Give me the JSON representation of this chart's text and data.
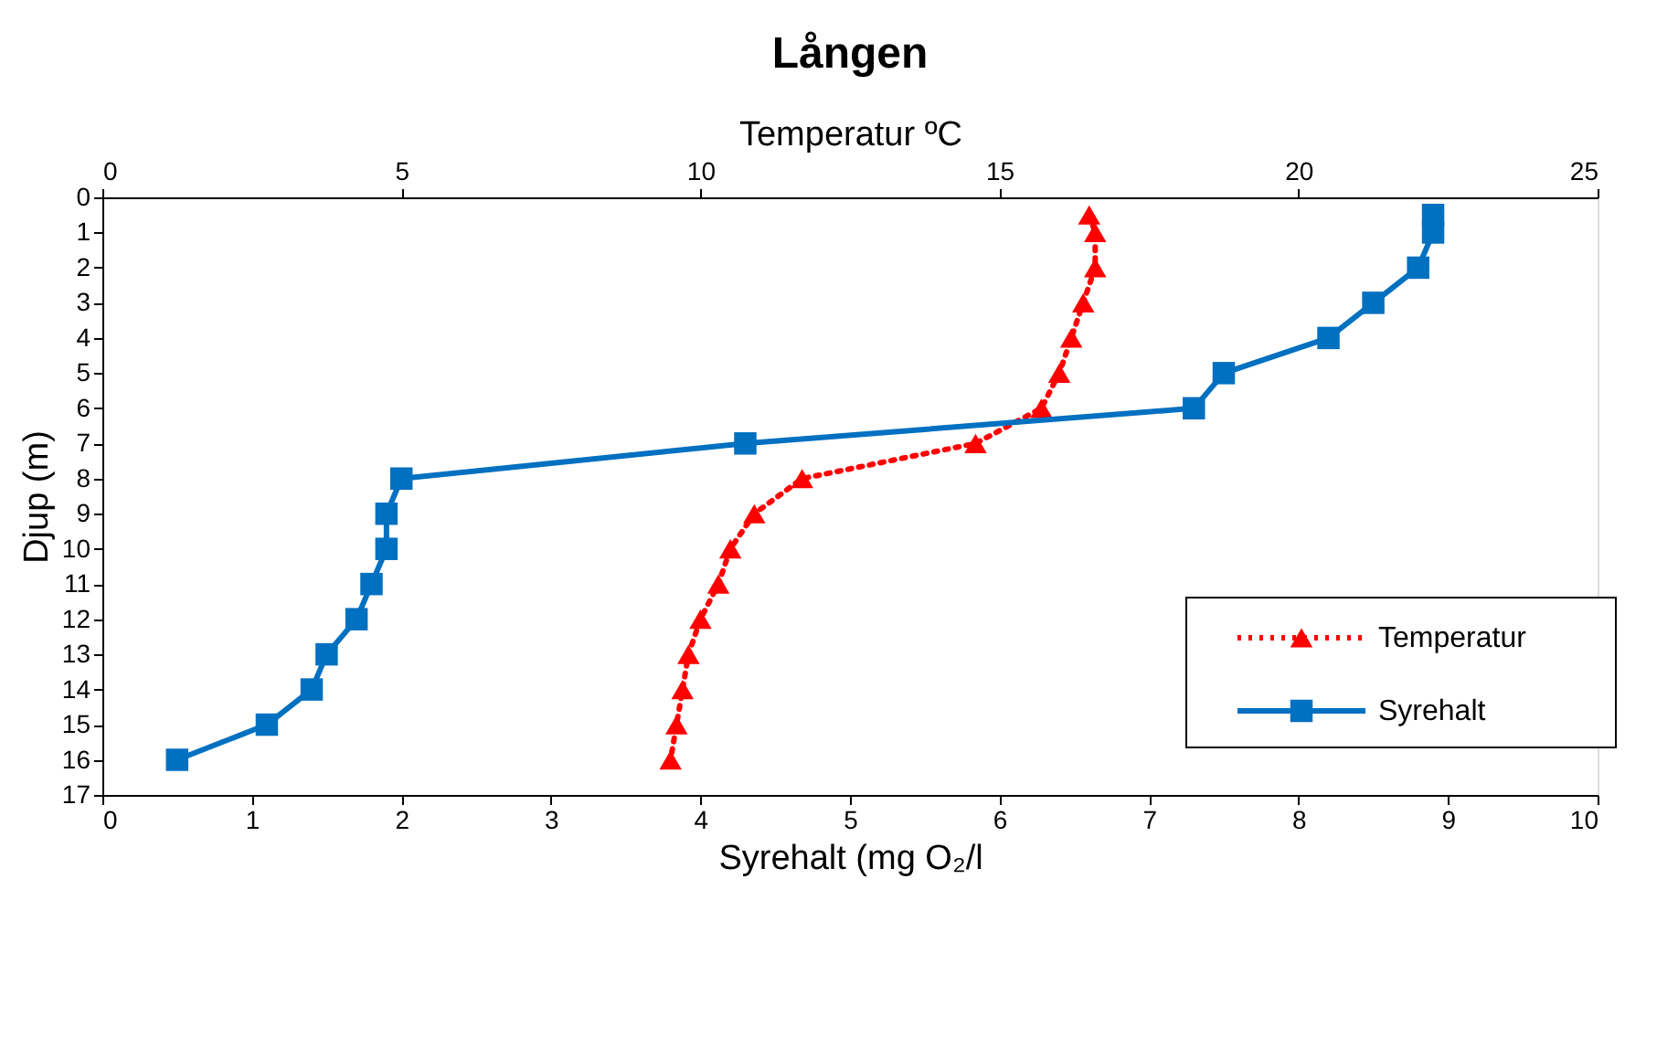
{
  "chart_data": {
    "type": "line",
    "title": "Lången",
    "xlabel": "Syrehalt (mg O₂/l",
    "x2label": "Temperatur ºC",
    "ylabel": "Djup (m)",
    "ylim": [
      17,
      0
    ],
    "yticks": [
      0,
      1,
      2,
      3,
      4,
      5,
      6,
      7,
      8,
      9,
      10,
      11,
      12,
      13,
      14,
      15,
      16,
      17
    ],
    "xlim": [
      0,
      10
    ],
    "xticks": [
      0,
      1,
      2,
      3,
      4,
      5,
      6,
      7,
      8,
      9,
      10
    ],
    "x2lim": [
      0,
      25
    ],
    "x2ticks": [
      0,
      5,
      10,
      15,
      20,
      25
    ],
    "grid": false,
    "legend": "bottom right",
    "series": [
      {
        "name": "Temperatur",
        "color": "#ff0000",
        "axis": "x2",
        "marker": "triangle",
        "line_style": "dotted",
        "x": [
          16.5,
          16.6,
          16.6,
          16.4,
          16.2,
          16.0,
          15.7,
          14.6,
          11.7,
          10.9,
          10.5,
          10.3,
          10.0,
          9.8,
          9.7,
          9.6,
          9.5
        ],
        "values": [
          0.5,
          1,
          2,
          3,
          4,
          5,
          6,
          7,
          8,
          9,
          10,
          11,
          12,
          13,
          14,
          15,
          16
        ]
      },
      {
        "name": "Syrehalt",
        "color": "#0070c0",
        "marker": "square",
        "line_style": "solid",
        "x": [
          8.9,
          8.9,
          8.8,
          8.5,
          8.2,
          7.5,
          7.3,
          4.3,
          2.0,
          1.9,
          1.9,
          1.8,
          1.7,
          1.5,
          1.4,
          1.1,
          0.5
        ],
        "values": [
          0.5,
          1,
          2,
          3,
          4,
          5,
          6,
          7,
          8,
          9,
          10,
          11,
          12,
          13,
          14,
          15,
          16
        ]
      }
    ]
  }
}
